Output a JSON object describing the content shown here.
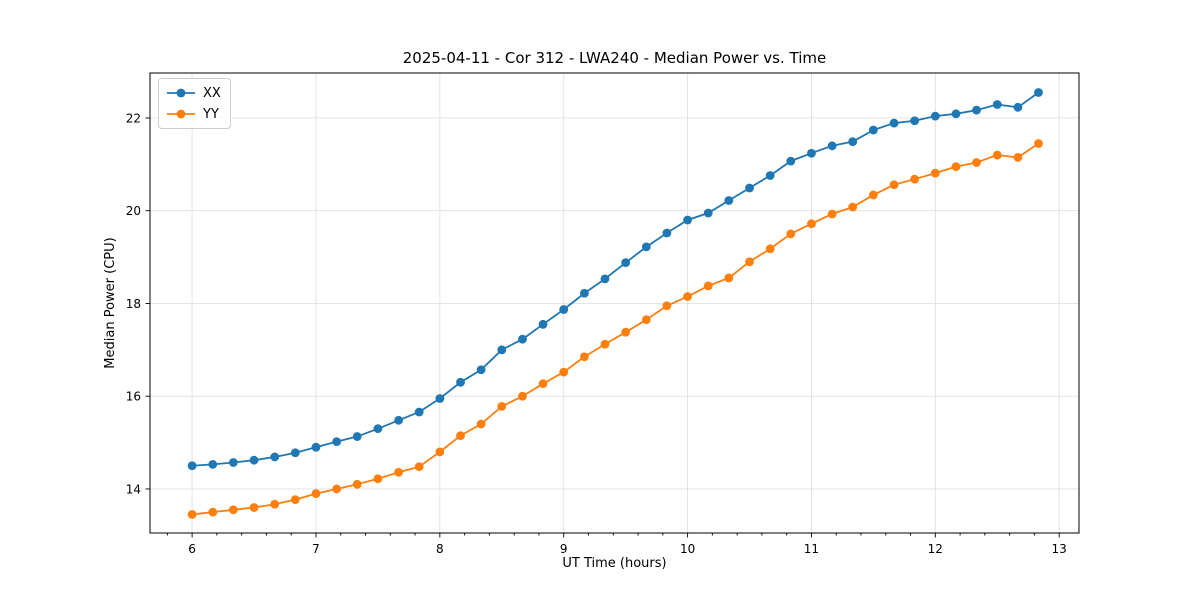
{
  "chart_data": {
    "type": "line",
    "title": "2025-04-11 - Cor 312 - LWA240 - Median Power vs. Time",
    "xlabel": "UT Time (hours)",
    "ylabel": "Median Power (CPU)",
    "xlim": [
      5.66,
      13.16
    ],
    "ylim": [
      13.05,
      22.97
    ],
    "x_ticks": [
      6,
      7,
      8,
      9,
      10,
      11,
      12,
      13
    ],
    "y_ticks": [
      14,
      16,
      18,
      20,
      22
    ],
    "x_minor_step": 0.2,
    "grid": true,
    "grid_color": "#e0e0e0",
    "legend_position": "upper left",
    "x": [
      6.0,
      6.167,
      6.333,
      6.5,
      6.667,
      6.833,
      7.0,
      7.167,
      7.333,
      7.5,
      7.667,
      7.833,
      8.0,
      8.167,
      8.333,
      8.5,
      8.667,
      8.833,
      9.0,
      9.167,
      9.333,
      9.5,
      9.667,
      9.833,
      10.0,
      10.167,
      10.333,
      10.5,
      10.667,
      10.833,
      11.0,
      11.167,
      11.333,
      11.5,
      11.667,
      11.833,
      12.0,
      12.167,
      12.333,
      12.5,
      12.667,
      12.833
    ],
    "series": [
      {
        "name": "XX",
        "color": "#1f77b4",
        "values": [
          14.5,
          14.53,
          14.57,
          14.62,
          14.69,
          14.78,
          14.9,
          15.02,
          15.13,
          15.3,
          15.48,
          15.66,
          15.95,
          16.3,
          16.57,
          17.0,
          17.23,
          17.55,
          17.87,
          18.22,
          18.53,
          18.88,
          19.22,
          19.52,
          19.8,
          19.95,
          20.22,
          20.49,
          20.76,
          21.07,
          21.24,
          21.4,
          21.49,
          21.74,
          21.89,
          21.94,
          22.04,
          22.09,
          22.17,
          22.29,
          22.23,
          22.55
        ]
      },
      {
        "name": "YY",
        "color": "#ff7f0e",
        "values": [
          13.45,
          13.5,
          13.55,
          13.6,
          13.67,
          13.77,
          13.9,
          14.0,
          14.1,
          14.22,
          14.36,
          14.48,
          14.8,
          15.15,
          15.4,
          15.78,
          16.0,
          16.27,
          16.52,
          16.85,
          17.12,
          17.38,
          17.65,
          17.95,
          18.15,
          18.38,
          18.55,
          18.9,
          19.18,
          19.5,
          19.72,
          19.93,
          20.08,
          20.34,
          20.56,
          20.68,
          20.81,
          20.95,
          21.04,
          21.2,
          21.15,
          21.45
        ]
      }
    ]
  }
}
